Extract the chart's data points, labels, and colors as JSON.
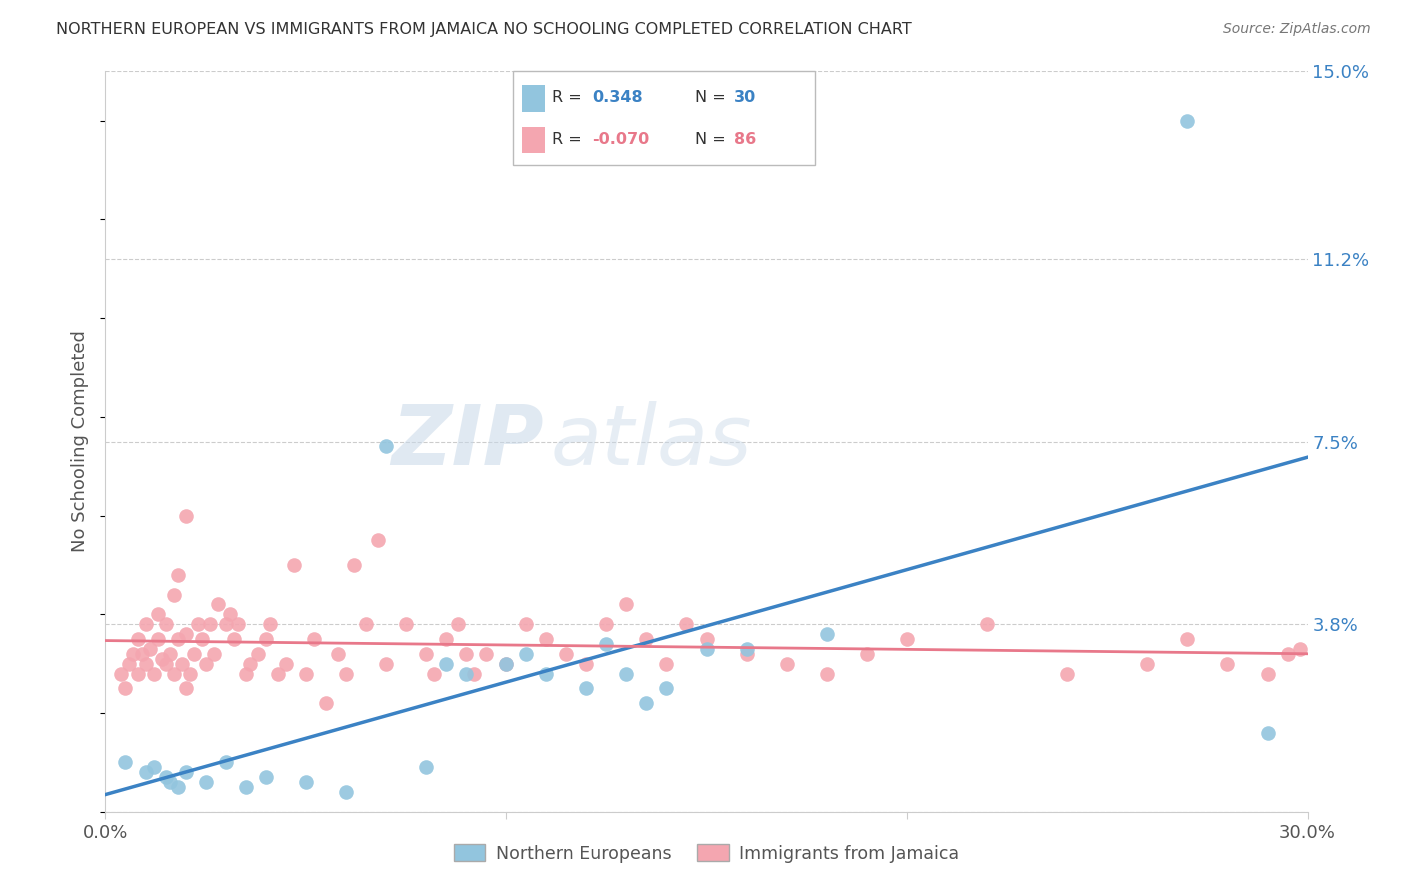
{
  "title": "NORTHERN EUROPEAN VS IMMIGRANTS FROM JAMAICA NO SCHOOLING COMPLETED CORRELATION CHART",
  "source": "Source: ZipAtlas.com",
  "ylabel": "No Schooling Completed",
  "xlim": [
    0.0,
    0.3
  ],
  "ylim": [
    0.0,
    0.15
  ],
  "ytick_vals": [
    0.0,
    0.038,
    0.075,
    0.112,
    0.15
  ],
  "ytick_labels_right": [
    "0.0%",
    "3.8%",
    "7.5%",
    "11.2%",
    "15.0%"
  ],
  "blue_R": 0.348,
  "blue_N": 30,
  "pink_R": -0.07,
  "pink_N": 86,
  "blue_color": "#92C5DE",
  "pink_color": "#F4A6B0",
  "blue_line_color": "#3B82C4",
  "pink_line_color": "#E8788A",
  "blue_scatter_x": [
    0.005,
    0.01,
    0.012,
    0.015,
    0.016,
    0.018,
    0.02,
    0.025,
    0.03,
    0.035,
    0.04,
    0.05,
    0.06,
    0.07,
    0.08,
    0.085,
    0.09,
    0.1,
    0.105,
    0.11,
    0.12,
    0.125,
    0.13,
    0.135,
    0.14,
    0.15,
    0.16,
    0.18,
    0.27,
    0.29
  ],
  "blue_scatter_y": [
    0.01,
    0.008,
    0.009,
    0.007,
    0.006,
    0.005,
    0.008,
    0.006,
    0.01,
    0.005,
    0.007,
    0.006,
    0.004,
    0.074,
    0.009,
    0.03,
    0.028,
    0.03,
    0.032,
    0.028,
    0.025,
    0.034,
    0.028,
    0.022,
    0.025,
    0.033,
    0.033,
    0.036,
    0.14,
    0.016
  ],
  "pink_scatter_x": [
    0.004,
    0.005,
    0.006,
    0.007,
    0.008,
    0.008,
    0.009,
    0.01,
    0.01,
    0.011,
    0.012,
    0.013,
    0.013,
    0.014,
    0.015,
    0.015,
    0.016,
    0.017,
    0.017,
    0.018,
    0.018,
    0.019,
    0.02,
    0.02,
    0.021,
    0.022,
    0.023,
    0.024,
    0.025,
    0.026,
    0.027,
    0.028,
    0.03,
    0.031,
    0.032,
    0.033,
    0.035,
    0.036,
    0.038,
    0.04,
    0.041,
    0.043,
    0.045,
    0.047,
    0.05,
    0.052,
    0.055,
    0.058,
    0.06,
    0.062,
    0.065,
    0.068,
    0.07,
    0.075,
    0.08,
    0.082,
    0.085,
    0.088,
    0.09,
    0.092,
    0.095,
    0.1,
    0.105,
    0.11,
    0.115,
    0.12,
    0.125,
    0.13,
    0.135,
    0.14,
    0.145,
    0.15,
    0.16,
    0.17,
    0.18,
    0.19,
    0.2,
    0.22,
    0.24,
    0.26,
    0.27,
    0.28,
    0.29,
    0.295,
    0.298,
    0.02
  ],
  "pink_scatter_y": [
    0.028,
    0.025,
    0.03,
    0.032,
    0.028,
    0.035,
    0.032,
    0.03,
    0.038,
    0.033,
    0.028,
    0.035,
    0.04,
    0.031,
    0.03,
    0.038,
    0.032,
    0.028,
    0.044,
    0.035,
    0.048,
    0.03,
    0.036,
    0.025,
    0.028,
    0.032,
    0.038,
    0.035,
    0.03,
    0.038,
    0.032,
    0.042,
    0.038,
    0.04,
    0.035,
    0.038,
    0.028,
    0.03,
    0.032,
    0.035,
    0.038,
    0.028,
    0.03,
    0.05,
    0.028,
    0.035,
    0.022,
    0.032,
    0.028,
    0.05,
    0.038,
    0.055,
    0.03,
    0.038,
    0.032,
    0.028,
    0.035,
    0.038,
    0.032,
    0.028,
    0.032,
    0.03,
    0.038,
    0.035,
    0.032,
    0.03,
    0.038,
    0.042,
    0.035,
    0.03,
    0.038,
    0.035,
    0.032,
    0.03,
    0.028,
    0.032,
    0.035,
    0.038,
    0.028,
    0.03,
    0.035,
    0.03,
    0.028,
    0.032,
    0.033,
    0.06
  ]
}
